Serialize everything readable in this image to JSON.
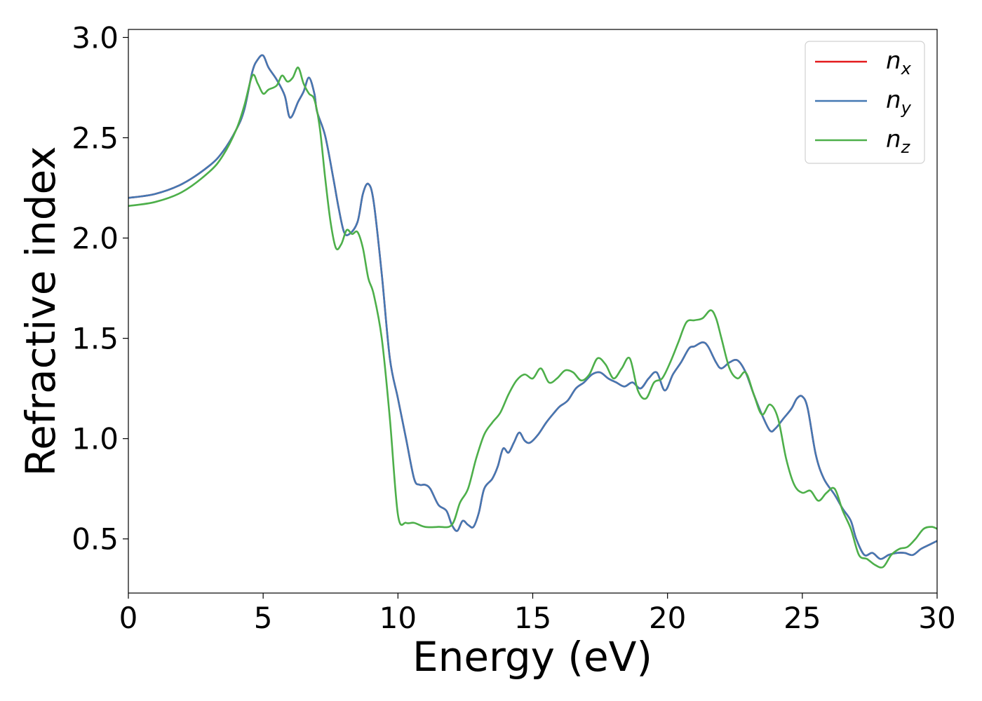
{
  "chart_data": {
    "type": "line",
    "xlabel": "Energy (eV)",
    "ylabel": "Refractive index",
    "xlim": [
      0,
      30
    ],
    "ylim": [
      0.23,
      3.04
    ],
    "xticks": [
      0,
      5,
      10,
      15,
      20,
      25,
      30
    ],
    "yticks": [
      0.5,
      1.0,
      1.5,
      2.0,
      2.5,
      3.0
    ],
    "xtick_labels": [
      "0",
      "5",
      "10",
      "15",
      "20",
      "25",
      "30"
    ],
    "ytick_labels": [
      "0.5",
      "1.0",
      "1.5",
      "2.0",
      "2.5",
      "3.0"
    ],
    "grid": false,
    "legend_position": "top-right",
    "series": [
      {
        "name": "n",
        "subscript": "x",
        "color": "#e41a1c",
        "x": [
          0,
          1,
          2,
          3,
          3.5,
          4,
          4.3,
          4.6,
          4.8,
          5.0,
          5.2,
          5.5,
          5.8,
          6.0,
          6.3,
          6.5,
          6.7,
          6.9,
          7.0,
          7.3,
          7.6,
          7.8,
          8.0,
          8.2,
          8.5,
          8.7,
          8.9,
          9.1,
          9.4,
          9.7,
          10.0,
          10.3,
          10.6,
          10.8,
          11.0,
          11.2,
          11.5,
          11.8,
          12.0,
          12.2,
          12.4,
          12.6,
          12.8,
          13.0,
          13.2,
          13.5,
          13.7,
          13.9,
          14.1,
          14.3,
          14.5,
          14.7,
          14.9,
          15.2,
          15.5,
          15.8,
          16.0,
          16.3,
          16.6,
          16.9,
          17.2,
          17.5,
          17.8,
          18.1,
          18.4,
          18.7,
          19.0,
          19.3,
          19.6,
          19.9,
          20.2,
          20.5,
          20.8,
          21.0,
          21.3,
          21.5,
          21.8,
          22.0,
          22.3,
          22.6,
          22.9,
          23.2,
          23.5,
          23.8,
          24.0,
          24.3,
          24.6,
          24.8,
          25.0,
          25.2,
          25.5,
          25.8,
          26.2,
          26.5,
          26.8,
          27.0,
          27.3,
          27.6,
          27.9,
          28.2,
          28.5,
          28.8,
          29.1,
          29.4,
          29.7,
          30.0
        ],
        "values": [
          2.2,
          2.22,
          2.27,
          2.36,
          2.43,
          2.54,
          2.64,
          2.83,
          2.89,
          2.91,
          2.85,
          2.79,
          2.71,
          2.6,
          2.68,
          2.73,
          2.8,
          2.72,
          2.63,
          2.51,
          2.3,
          2.15,
          2.03,
          2.02,
          2.08,
          2.22,
          2.27,
          2.18,
          1.82,
          1.4,
          1.2,
          1.0,
          0.8,
          0.77,
          0.77,
          0.75,
          0.67,
          0.64,
          0.57,
          0.54,
          0.59,
          0.57,
          0.56,
          0.63,
          0.75,
          0.8,
          0.86,
          0.95,
          0.93,
          0.98,
          1.03,
          0.99,
          0.98,
          1.02,
          1.08,
          1.13,
          1.16,
          1.19,
          1.25,
          1.28,
          1.32,
          1.33,
          1.3,
          1.28,
          1.26,
          1.28,
          1.25,
          1.3,
          1.33,
          1.24,
          1.32,
          1.38,
          1.45,
          1.46,
          1.48,
          1.46,
          1.38,
          1.35,
          1.38,
          1.39,
          1.33,
          1.22,
          1.12,
          1.04,
          1.05,
          1.1,
          1.15,
          1.2,
          1.21,
          1.15,
          0.92,
          0.8,
          0.72,
          0.65,
          0.59,
          0.5,
          0.42,
          0.43,
          0.4,
          0.42,
          0.43,
          0.43,
          0.42,
          0.45,
          0.47,
          0.49
        ]
      },
      {
        "name": "n",
        "subscript": "y",
        "color": "#4478b3",
        "x": [
          0,
          1,
          2,
          3,
          3.5,
          4,
          4.3,
          4.6,
          4.8,
          5.0,
          5.2,
          5.5,
          5.8,
          6.0,
          6.3,
          6.5,
          6.7,
          6.9,
          7.0,
          7.3,
          7.6,
          7.8,
          8.0,
          8.2,
          8.5,
          8.7,
          8.9,
          9.1,
          9.4,
          9.7,
          10.0,
          10.3,
          10.6,
          10.8,
          11.0,
          11.2,
          11.5,
          11.8,
          12.0,
          12.2,
          12.4,
          12.6,
          12.8,
          13.0,
          13.2,
          13.5,
          13.7,
          13.9,
          14.1,
          14.3,
          14.5,
          14.7,
          14.9,
          15.2,
          15.5,
          15.8,
          16.0,
          16.3,
          16.6,
          16.9,
          17.2,
          17.5,
          17.8,
          18.1,
          18.4,
          18.7,
          19.0,
          19.3,
          19.6,
          19.9,
          20.2,
          20.5,
          20.8,
          21.0,
          21.3,
          21.5,
          21.8,
          22.0,
          22.3,
          22.6,
          22.9,
          23.2,
          23.5,
          23.8,
          24.0,
          24.3,
          24.6,
          24.8,
          25.0,
          25.2,
          25.5,
          25.8,
          26.2,
          26.5,
          26.8,
          27.0,
          27.3,
          27.6,
          27.9,
          28.2,
          28.5,
          28.8,
          29.1,
          29.4,
          29.7,
          30.0
        ],
        "values": [
          2.2,
          2.22,
          2.27,
          2.36,
          2.43,
          2.54,
          2.64,
          2.83,
          2.89,
          2.91,
          2.85,
          2.79,
          2.71,
          2.6,
          2.68,
          2.73,
          2.8,
          2.72,
          2.63,
          2.51,
          2.3,
          2.15,
          2.03,
          2.02,
          2.08,
          2.22,
          2.27,
          2.18,
          1.82,
          1.4,
          1.2,
          1.0,
          0.8,
          0.77,
          0.77,
          0.75,
          0.67,
          0.64,
          0.57,
          0.54,
          0.59,
          0.57,
          0.56,
          0.63,
          0.75,
          0.8,
          0.86,
          0.95,
          0.93,
          0.98,
          1.03,
          0.99,
          0.98,
          1.02,
          1.08,
          1.13,
          1.16,
          1.19,
          1.25,
          1.28,
          1.32,
          1.33,
          1.3,
          1.28,
          1.26,
          1.28,
          1.25,
          1.3,
          1.33,
          1.24,
          1.32,
          1.38,
          1.45,
          1.46,
          1.48,
          1.46,
          1.38,
          1.35,
          1.38,
          1.39,
          1.33,
          1.22,
          1.12,
          1.04,
          1.05,
          1.1,
          1.15,
          1.2,
          1.21,
          1.15,
          0.92,
          0.8,
          0.72,
          0.65,
          0.59,
          0.5,
          0.42,
          0.43,
          0.4,
          0.42,
          0.43,
          0.43,
          0.42,
          0.45,
          0.47,
          0.49
        ]
      },
      {
        "name": "n",
        "subscript": "z",
        "color": "#4daf4a",
        "x": [
          0,
          1,
          2,
          3,
          3.5,
          4,
          4.3,
          4.6,
          4.8,
          5.0,
          5.2,
          5.5,
          5.7,
          5.9,
          6.1,
          6.3,
          6.5,
          6.7,
          6.9,
          7.1,
          7.3,
          7.5,
          7.7,
          7.9,
          8.1,
          8.3,
          8.5,
          8.7,
          8.9,
          9.1,
          9.4,
          9.7,
          10.0,
          10.3,
          10.6,
          11.0,
          11.5,
          12.0,
          12.3,
          12.6,
          12.9,
          13.2,
          13.5,
          13.8,
          14.1,
          14.4,
          14.7,
          15.0,
          15.3,
          15.6,
          15.9,
          16.2,
          16.5,
          16.8,
          17.1,
          17.4,
          17.7,
          18.0,
          18.3,
          18.6,
          18.9,
          19.2,
          19.5,
          19.8,
          20.1,
          20.4,
          20.7,
          21.0,
          21.3,
          21.6,
          21.8,
          22.0,
          22.3,
          22.6,
          22.9,
          23.2,
          23.5,
          23.8,
          24.1,
          24.4,
          24.7,
          25.0,
          25.3,
          25.6,
          25.9,
          26.2,
          26.5,
          26.8,
          27.1,
          27.4,
          27.7,
          28.0,
          28.3,
          28.6,
          28.9,
          29.2,
          29.5,
          29.8,
          30.0
        ],
        "values": [
          2.16,
          2.18,
          2.23,
          2.33,
          2.41,
          2.54,
          2.66,
          2.81,
          2.77,
          2.72,
          2.74,
          2.76,
          2.81,
          2.78,
          2.8,
          2.85,
          2.77,
          2.72,
          2.69,
          2.55,
          2.3,
          2.08,
          1.95,
          1.97,
          2.04,
          2.02,
          2.03,
          1.95,
          1.8,
          1.72,
          1.5,
          1.1,
          0.62,
          0.58,
          0.58,
          0.56,
          0.56,
          0.57,
          0.68,
          0.75,
          0.9,
          1.02,
          1.08,
          1.13,
          1.22,
          1.29,
          1.32,
          1.3,
          1.35,
          1.28,
          1.3,
          1.34,
          1.33,
          1.29,
          1.32,
          1.4,
          1.37,
          1.3,
          1.35,
          1.4,
          1.24,
          1.2,
          1.28,
          1.3,
          1.38,
          1.48,
          1.58,
          1.59,
          1.6,
          1.64,
          1.6,
          1.5,
          1.35,
          1.3,
          1.33,
          1.22,
          1.12,
          1.17,
          1.1,
          0.9,
          0.77,
          0.73,
          0.74,
          0.69,
          0.73,
          0.75,
          0.64,
          0.55,
          0.42,
          0.4,
          0.37,
          0.36,
          0.42,
          0.45,
          0.46,
          0.5,
          0.55,
          0.56,
          0.55
        ]
      }
    ]
  }
}
